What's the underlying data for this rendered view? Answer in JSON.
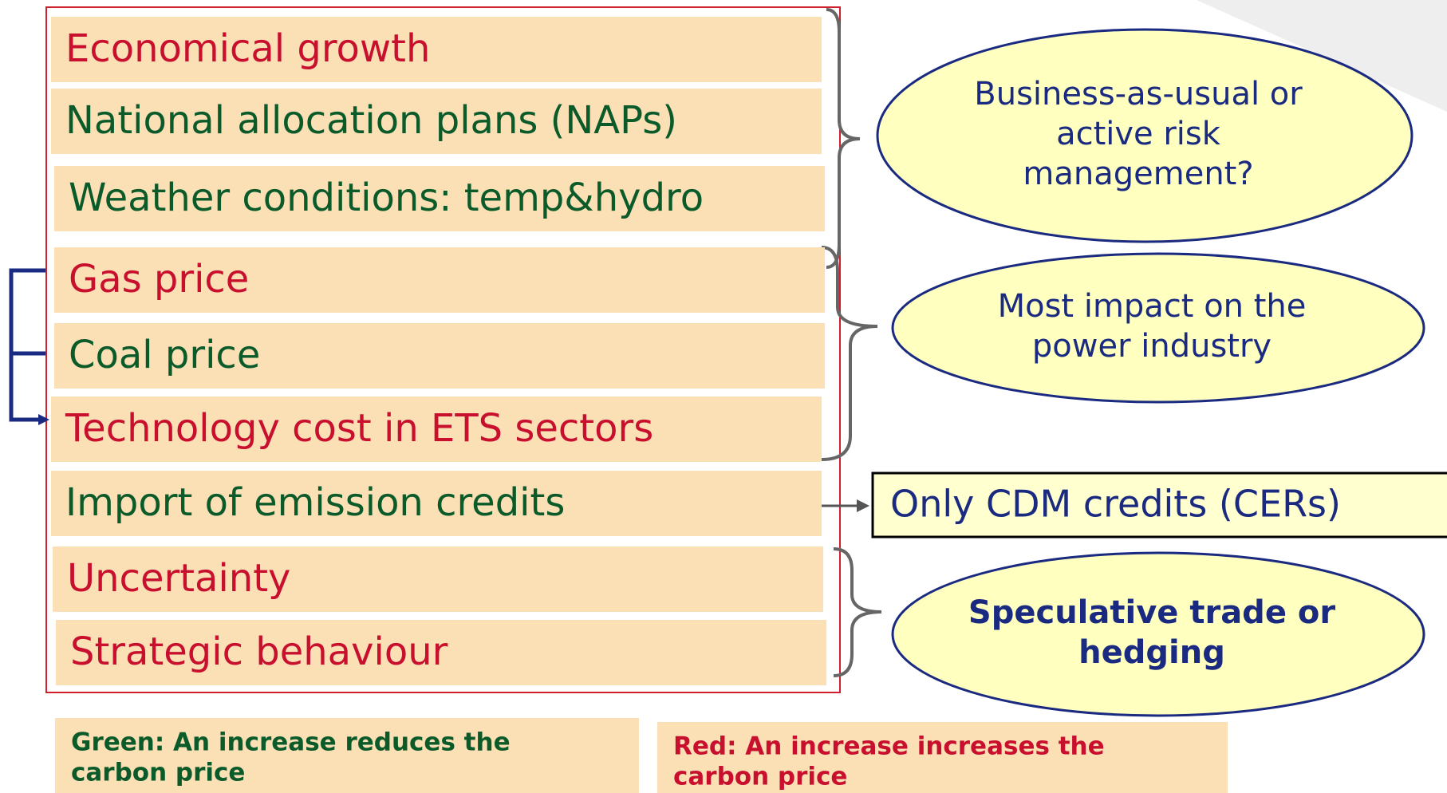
{
  "factors": [
    {
      "label": "Economical growth",
      "color": "#c8102e"
    },
    {
      "label": "National allocation plans (NAPs)",
      "color": "#0b5a2a"
    },
    {
      "label": "Weather conditions:  temp&hydro",
      "color": "#0b5a2a"
    },
    {
      "label": "Gas price",
      "color": "#c8102e"
    },
    {
      "label": "Coal price",
      "color": "#0b5a2a"
    },
    {
      "label": "Technology cost in ETS sectors",
      "color": "#c8102e"
    },
    {
      "label": "Import of emission credits",
      "color": "#0b5a2a"
    },
    {
      "label": "Uncertainty",
      "color": "#c8102e"
    },
    {
      "label": "Strategic behaviour",
      "color": "#c8102e"
    }
  ],
  "ellipses": [
    {
      "lines": [
        "Business-as-usual or",
        "active risk",
        "management?"
      ]
    },
    {
      "lines": [
        "Most impact on the",
        "power industry"
      ]
    },
    {
      "lines": [
        "Speculative trade or",
        "hedging"
      ]
    }
  ],
  "cdm_box": "Only CDM credits (CERs)",
  "legend": [
    {
      "lines": [
        "Green: An increase reduces the",
        "carbon price"
      ],
      "color": "#0b5a2a"
    },
    {
      "lines": [
        "Red: An increase increases the",
        "carbon price"
      ],
      "color": "#c8102e"
    }
  ]
}
